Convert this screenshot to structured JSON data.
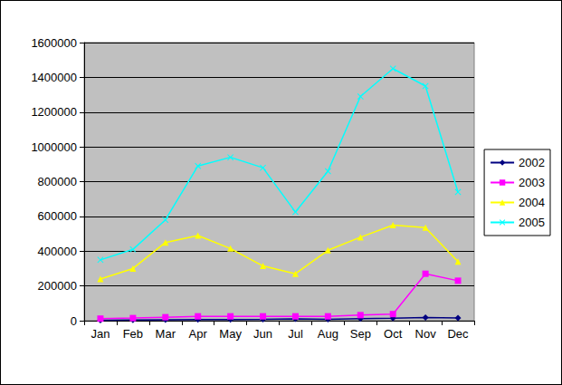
{
  "chart_data": {
    "type": "line",
    "categories": [
      "Jan",
      "Feb",
      "Mar",
      "Apr",
      "May",
      "Jun",
      "Jul",
      "Aug",
      "Sep",
      "Oct",
      "Nov",
      "Dec"
    ],
    "series": [
      {
        "name": "2002",
        "color": "#000080",
        "marker": "diamond",
        "values": [
          3000,
          4000,
          5000,
          6000,
          7000,
          8000,
          10000,
          8000,
          12000,
          14000,
          18000,
          15000
        ]
      },
      {
        "name": "2003",
        "color": "#ff00ff",
        "marker": "square",
        "values": [
          12000,
          15000,
          20000,
          25000,
          25000,
          25000,
          25000,
          25000,
          32000,
          38000,
          270000,
          230000
        ]
      },
      {
        "name": "2004",
        "color": "#ffff00",
        "marker": "triangle",
        "values": [
          240000,
          300000,
          450000,
          490000,
          415000,
          315000,
          270000,
          405000,
          480000,
          550000,
          535000,
          340000
        ]
      },
      {
        "name": "2005",
        "color": "#00ffff",
        "marker": "x",
        "values": [
          350000,
          410000,
          580000,
          890000,
          940000,
          880000,
          625000,
          860000,
          1290000,
          1450000,
          1350000,
          740000
        ]
      }
    ],
    "ylim": [
      0,
      1600000
    ],
    "yticks": [
      0,
      200000,
      400000,
      600000,
      800000,
      1000000,
      1200000,
      1400000,
      1600000
    ],
    "grid": true,
    "legend": "right"
  }
}
